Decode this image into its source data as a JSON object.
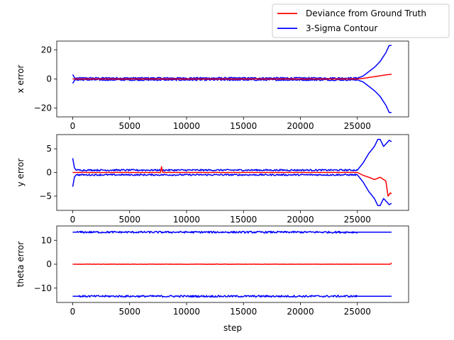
{
  "legend": {
    "placement": "upper-right-outside",
    "entries": [
      {
        "label": "Deviance from Ground Truth",
        "color": "#ff0000"
      },
      {
        "label": "3-Sigma Contour",
        "color": "#0000ff"
      }
    ]
  },
  "colors": {
    "deviance": "#ff0000",
    "sigma": "#0000ff"
  },
  "chart_data": [
    {
      "type": "line",
      "xlabel": "",
      "ylabel": "x error",
      "xlim": [
        -1400,
        29500
      ],
      "ylim": [
        -26,
        26
      ],
      "xticks": [
        0,
        5000,
        10000,
        15000,
        20000,
        25000
      ],
      "yticks": [
        -20,
        0,
        20
      ],
      "tick_labels_x": [
        "0",
        "5000",
        "10000",
        "15000",
        "20000",
        "25000"
      ],
      "tick_labels_y": [
        "−20",
        "0",
        "20"
      ],
      "series": [
        {
          "role": "deviance",
          "color": "#ff0000",
          "x": [
            0,
            25000,
            25500,
            26000,
            26500,
            27000,
            27500,
            28000
          ],
          "y": [
            0,
            0,
            0.4,
            1.0,
            1.6,
            2.2,
            2.8,
            3.2
          ]
        },
        {
          "role": "sigma-upper",
          "color": "#0000ff",
          "x": [
            0,
            200,
            400,
            25000,
            25500,
            26000,
            26500,
            27000,
            27500,
            27800,
            28000
          ],
          "y": [
            3,
            0.5,
            0.6,
            0.6,
            2,
            5,
            8,
            12,
            18,
            23,
            23
          ]
        },
        {
          "role": "sigma-lower",
          "color": "#0000ff",
          "x": [
            0,
            200,
            400,
            25000,
            25500,
            26000,
            26500,
            27000,
            27500,
            27800,
            28000
          ],
          "y": [
            -3,
            -0.5,
            -0.6,
            -0.6,
            -2,
            -5,
            -8,
            -12,
            -18,
            -23,
            -23
          ]
        }
      ]
    },
    {
      "type": "line",
      "xlabel": "",
      "ylabel": "y error",
      "xlim": [
        -1400,
        29500
      ],
      "ylim": [
        -8,
        8
      ],
      "xticks": [
        0,
        5000,
        10000,
        15000,
        20000,
        25000
      ],
      "yticks": [
        -5,
        0,
        5
      ],
      "tick_labels_x": [
        "0",
        "5000",
        "10000",
        "15000",
        "20000",
        "25000"
      ],
      "tick_labels_y": [
        "−5",
        "0",
        "5"
      ],
      "series": [
        {
          "role": "deviance",
          "color": "#ff0000",
          "x": [
            0,
            7700,
            7800,
            7900,
            25000,
            25500,
            26000,
            26500,
            27000,
            27500,
            27700,
            27900,
            28000
          ],
          "y": [
            0,
            0,
            1.2,
            0,
            0,
            -0.6,
            -1.0,
            -1.5,
            -1.0,
            -1.8,
            -5.0,
            -4.3,
            -4.5
          ]
        },
        {
          "role": "sigma-upper",
          "color": "#0000ff",
          "x": [
            0,
            150,
            300,
            25000,
            25500,
            26000,
            26500,
            26800,
            27000,
            27300,
            27500,
            27800,
            28000
          ],
          "y": [
            3,
            1,
            0.5,
            0.5,
            2,
            4,
            5.5,
            7,
            7,
            5.5,
            6,
            6.8,
            6.5
          ]
        },
        {
          "role": "sigma-lower",
          "color": "#0000ff",
          "x": [
            0,
            150,
            300,
            25000,
            25500,
            26000,
            26500,
            26800,
            27000,
            27300,
            27500,
            27800,
            28000
          ],
          "y": [
            -3,
            -1,
            -0.5,
            -0.5,
            -2,
            -4,
            -5.5,
            -7,
            -7,
            -5.5,
            -6,
            -6.8,
            -6.5
          ]
        }
      ]
    },
    {
      "type": "line",
      "xlabel": "step",
      "ylabel": "theta error",
      "xlim": [
        -1400,
        29500
      ],
      "ylim": [
        -16,
        16
      ],
      "xticks": [
        0,
        5000,
        10000,
        15000,
        20000,
        25000
      ],
      "yticks": [
        -10,
        0,
        10
      ],
      "tick_labels_x": [
        "0",
        "5000",
        "10000",
        "15000",
        "20000",
        "25000"
      ],
      "tick_labels_y": [
        "−10",
        "0",
        "10"
      ],
      "series": [
        {
          "role": "deviance",
          "color": "#ff0000",
          "x": [
            0,
            27900,
            28000
          ],
          "y": [
            0,
            0,
            0.6
          ]
        },
        {
          "role": "sigma-upper",
          "color": "#0000ff",
          "x": [
            0,
            28000
          ],
          "y": [
            13.4,
            13.4
          ]
        },
        {
          "role": "sigma-lower",
          "color": "#0000ff",
          "x": [
            0,
            28000
          ],
          "y": [
            -13.4,
            -13.4
          ]
        }
      ]
    }
  ]
}
